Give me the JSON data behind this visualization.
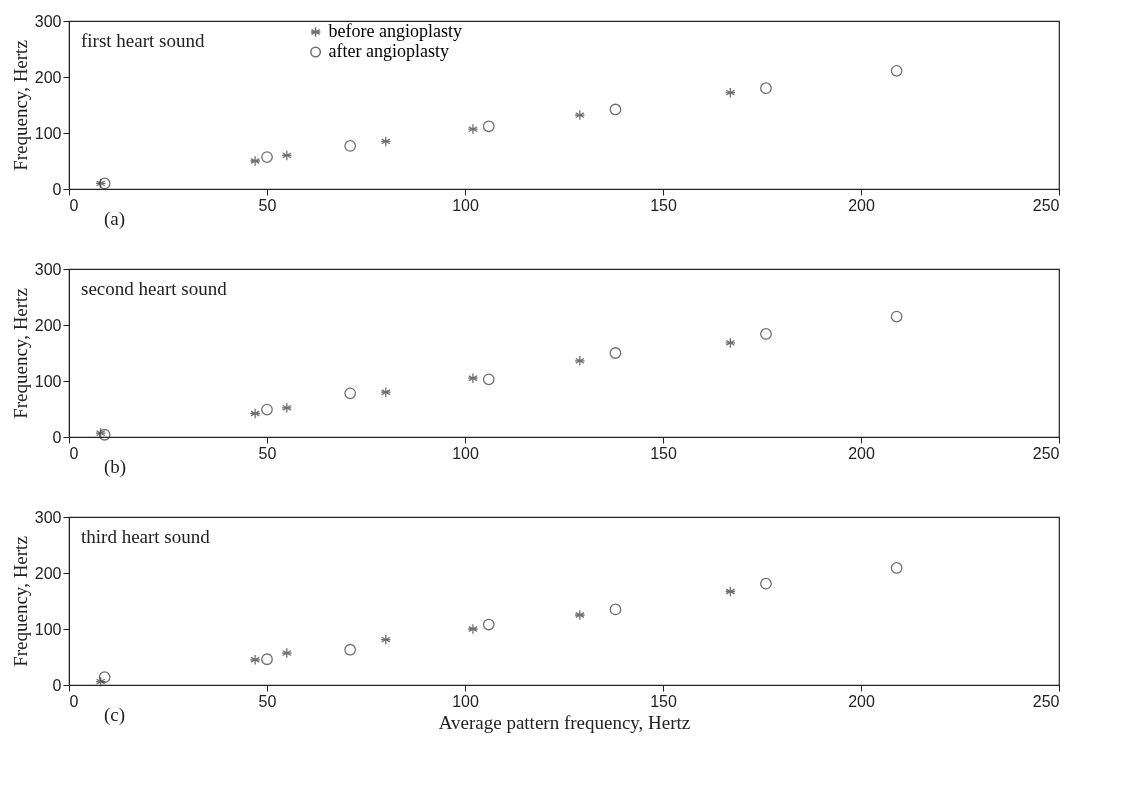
{
  "chart_data": [
    {
      "type": "scatter",
      "ylabel": "Frequency, Hertz",
      "annotations": [
        "first heart sound",
        "(a)"
      ],
      "legend": "top left",
      "xlim": [
        0,
        250
      ],
      "xticks": [
        0,
        50,
        100,
        150,
        200,
        250
      ],
      "ylim": [
        0,
        300
      ],
      "yticks": [
        0,
        100,
        200,
        300
      ],
      "grid": false,
      "series": [
        {
          "name": "before angioplasty",
          "color": "#333333",
          "marker": "cross",
          "x": [
            8,
            47,
            55,
            80,
            102,
            129,
            167
          ],
          "values": [
            10,
            50,
            60,
            85,
            107,
            132,
            172
          ]
        },
        {
          "name": "after angioplasty",
          "color": "#333333",
          "marker": "circle",
          "x": [
            9,
            50,
            71,
            106,
            138,
            176,
            209
          ],
          "values": [
            10,
            57,
            77,
            112,
            142,
            180,
            211
          ]
        }
      ]
    },
    {
      "type": "scatter",
      "ylabel": "Frequency, Hertz",
      "annotations": [
        "second heart sound",
        "(b)"
      ],
      "xlim": [
        0,
        250
      ],
      "xticks": [
        0,
        50,
        100,
        150,
        200,
        250
      ],
      "ylim": [
        0,
        300
      ],
      "yticks": [
        0,
        100,
        200,
        300
      ],
      "grid": false,
      "series": [
        {
          "color": "#333333",
          "marker": "cross",
          "x": [
            8,
            47,
            55,
            80,
            102,
            129,
            167
          ],
          "values": [
            7,
            42,
            52,
            80,
            105,
            136,
            168
          ]
        },
        {
          "color": "#333333",
          "marker": "circle",
          "x": [
            9,
            50,
            71,
            106,
            138,
            176,
            209
          ],
          "values": [
            4,
            49,
            78,
            103,
            150,
            184,
            215
          ]
        }
      ]
    },
    {
      "type": "scatter",
      "ylabel": "Frequency, Hertz",
      "xlabel": "Average pattern frequency, Hertz",
      "annotations": [
        "third heart sound",
        "(c)"
      ],
      "xlim": [
        0,
        250
      ],
      "xticks": [
        0,
        50,
        100,
        150,
        200,
        250
      ],
      "ylim": [
        0,
        300
      ],
      "yticks": [
        0,
        100,
        200,
        300
      ],
      "grid": false,
      "series": [
        {
          "color": "#333333",
          "marker": "cross",
          "x": [
            8,
            47,
            55,
            80,
            102,
            129,
            167
          ],
          "values": [
            6,
            45,
            57,
            81,
            100,
            125,
            167
          ]
        },
        {
          "color": "#333333",
          "marker": "circle",
          "x": [
            9,
            50,
            71,
            106,
            138,
            176,
            209
          ],
          "values": [
            14,
            46,
            63,
            108,
            135,
            181,
            209
          ]
        }
      ]
    }
  ]
}
